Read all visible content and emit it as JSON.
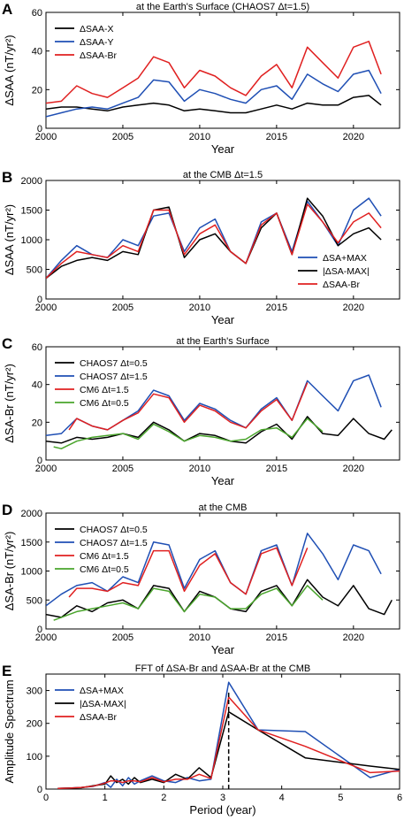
{
  "figure": {
    "colors": {
      "black": "#000000",
      "blue": "#1f4fb4",
      "red": "#e02020",
      "green": "#4aa52c"
    }
  },
  "chart_data": [
    {
      "type": "line",
      "panel_label": "A",
      "title": "at the Earth's Surface (CHAOS7 Δt=1.5)",
      "xlabel": "Year",
      "ylabel": "ΔSAA (nT/yr²)",
      "xlim": [
        2000,
        2023
      ],
      "ylim": [
        0,
        60
      ],
      "xticks": [
        2000,
        2005,
        2010,
        2015,
        2020
      ],
      "yticks": [
        0,
        20,
        40,
        60
      ],
      "legend_position": "top-left",
      "series": [
        {
          "name": "ΔSAA-X",
          "color": "black",
          "x": [
            2000,
            2001,
            2002,
            2003,
            2004,
            2005,
            2006,
            2007,
            2008,
            2009,
            2010,
            2011,
            2012,
            2013,
            2014,
            2015,
            2016,
            2017,
            2018,
            2019,
            2020,
            2021,
            2021.8
          ],
          "y": [
            10,
            11,
            11,
            10,
            9,
            11,
            12,
            13,
            12,
            9,
            10,
            9,
            8,
            8,
            10,
            12,
            10,
            13,
            12,
            12,
            16,
            17,
            12
          ]
        },
        {
          "name": "ΔSAA-Y",
          "color": "blue",
          "x": [
            2000,
            2001,
            2002,
            2003,
            2004,
            2005,
            2006,
            2007,
            2008,
            2009,
            2010,
            2011,
            2012,
            2013,
            2014,
            2015,
            2016,
            2017,
            2018,
            2019,
            2020,
            2021,
            2021.8
          ],
          "y": [
            6,
            8,
            10,
            11,
            10,
            13,
            16,
            25,
            24,
            14,
            20,
            18,
            15,
            13,
            20,
            22,
            15,
            28,
            23,
            19,
            28,
            30,
            18
          ]
        },
        {
          "name": "ΔSAA-Br",
          "color": "red",
          "x": [
            2000,
            2001,
            2002,
            2003,
            2004,
            2005,
            2006,
            2007,
            2008,
            2009,
            2010,
            2011,
            2012,
            2013,
            2014,
            2015,
            2016,
            2017,
            2018,
            2019,
            2020,
            2021,
            2021.8
          ],
          "y": [
            13,
            14,
            22,
            18,
            16,
            21,
            26,
            37,
            34,
            21,
            30,
            27,
            21,
            17,
            27,
            33,
            21,
            42,
            34,
            26,
            42,
            45,
            28
          ]
        }
      ]
    },
    {
      "type": "line",
      "panel_label": "B",
      "title": "at the CMB Δt=1.5",
      "xlabel": "Year",
      "ylabel": "ΔSAA (nT/yr²)",
      "xlim": [
        2000,
        2023
      ],
      "ylim": [
        0,
        2000
      ],
      "xticks": [
        2000,
        2005,
        2010,
        2015,
        2020
      ],
      "yticks": [
        0,
        500,
        1000,
        1500,
        2000
      ],
      "legend_position": "bottom-right",
      "series": [
        {
          "name": "ΔSA+MAX",
          "color": "blue",
          "x": [
            2000,
            2001,
            2002,
            2003,
            2004,
            2005,
            2006,
            2007,
            2008,
            2009,
            2010,
            2011,
            2012,
            2013,
            2014,
            2015,
            2016,
            2017,
            2018,
            2019,
            2020,
            2021,
            2021.8
          ],
          "y": [
            350,
            650,
            900,
            750,
            700,
            1000,
            900,
            1400,
            1450,
            800,
            1200,
            1350,
            800,
            600,
            1300,
            1450,
            800,
            1650,
            1300,
            900,
            1500,
            1700,
            1400
          ]
        },
        {
          "name": "|ΔSA-MAX|",
          "color": "black",
          "x": [
            2000,
            2001,
            2002,
            2003,
            2004,
            2005,
            2006,
            2007,
            2008,
            2009,
            2010,
            2011,
            2012,
            2013,
            2014,
            2015,
            2016,
            2017,
            2018,
            2019,
            2020,
            2021,
            2021.8
          ],
          "y": [
            350,
            550,
            650,
            700,
            650,
            800,
            750,
            1500,
            1550,
            700,
            1000,
            1100,
            800,
            600,
            1200,
            1450,
            750,
            1700,
            1400,
            900,
            1100,
            1200,
            1000
          ]
        },
        {
          "name": "ΔSAA-Br",
          "color": "red",
          "x": [
            2000,
            2001,
            2002,
            2003,
            2004,
            2005,
            2006,
            2007,
            2008,
            2009,
            2010,
            2011,
            2012,
            2013,
            2014,
            2015,
            2016,
            2017,
            2018,
            2019,
            2020,
            2021,
            2021.8
          ],
          "y": [
            350,
            600,
            800,
            750,
            700,
            900,
            800,
            1500,
            1500,
            750,
            1100,
            1250,
            800,
            600,
            1250,
            1450,
            750,
            1600,
            1300,
            950,
            1300,
            1450,
            1200
          ]
        }
      ]
    },
    {
      "type": "line",
      "panel_label": "C",
      "title": "at the Earth's Surface",
      "xlabel": "Year",
      "ylabel": "ΔSA-Br (nT/yr²)",
      "xlim": [
        2000,
        2023
      ],
      "ylim": [
        0,
        60
      ],
      "xticks": [
        2000,
        2005,
        2010,
        2015,
        2020
      ],
      "yticks": [
        0,
        20,
        40,
        60
      ],
      "legend_position": "top-left",
      "series": [
        {
          "name": "CHAOS7 Δt=0.5",
          "color": "black",
          "x": [
            2000,
            2001,
            2002,
            2003,
            2004,
            2005,
            2006,
            2007,
            2008,
            2009,
            2010,
            2011,
            2012,
            2013,
            2014,
            2015,
            2016,
            2017,
            2018,
            2019,
            2020,
            2021,
            2022,
            2022.5
          ],
          "y": [
            10,
            9,
            12,
            11,
            12,
            14,
            12,
            20,
            16,
            10,
            14,
            13,
            10,
            9,
            15,
            19,
            11,
            23,
            14,
            13,
            22,
            14,
            11,
            16
          ]
        },
        {
          "name": "CHAOS7 Δt=1.5",
          "color": "blue",
          "x": [
            2000,
            2001,
            2002,
            2003,
            2004,
            2005,
            2006,
            2007,
            2008,
            2009,
            2010,
            2011,
            2012,
            2013,
            2014,
            2015,
            2016,
            2017,
            2018,
            2019,
            2020,
            2021,
            2021.8
          ],
          "y": [
            13,
            14,
            22,
            18,
            16,
            21,
            26,
            37,
            34,
            21,
            30,
            27,
            21,
            17,
            27,
            33,
            21,
            42,
            34,
            26,
            42,
            45,
            28
          ]
        },
        {
          "name": "CM6 Δt=1.5",
          "color": "red",
          "x": [
            2001.5,
            2002,
            2003,
            2004,
            2005,
            2006,
            2007,
            2008,
            2009,
            2010,
            2011,
            2012,
            2013,
            2014,
            2015,
            2016,
            2017
          ],
          "y": [
            16,
            22,
            18,
            16,
            21,
            25,
            35,
            33,
            20,
            29,
            26,
            20,
            17,
            26,
            32,
            21,
            41
          ]
        },
        {
          "name": "CM6 Δt=0.5",
          "color": "green",
          "x": [
            2000.5,
            2001,
            2002,
            2003,
            2004,
            2005,
            2006,
            2007,
            2008,
            2009,
            2010,
            2011,
            2012,
            2013,
            2014,
            2015,
            2016,
            2017,
            2018
          ],
          "y": [
            7,
            6,
            10,
            12,
            13,
            14,
            11,
            19,
            15,
            10,
            13,
            12,
            10,
            11,
            16,
            17,
            12,
            22,
            15
          ]
        }
      ]
    },
    {
      "type": "line",
      "panel_label": "D",
      "title": "at the CMB",
      "xlabel": "Year",
      "ylabel": "ΔSA-Br (nT/yr²)",
      "xlim": [
        2000,
        2023
      ],
      "ylim": [
        0,
        2000
      ],
      "xticks": [
        2000,
        2005,
        2010,
        2015,
        2020
      ],
      "yticks": [
        0,
        500,
        1000,
        1500,
        2000
      ],
      "legend_position": "top-left",
      "series": [
        {
          "name": "CHAOS7 Δt=0.5",
          "color": "black",
          "x": [
            2000,
            2001,
            2002,
            2003,
            2004,
            2005,
            2006,
            2007,
            2008,
            2009,
            2010,
            2011,
            2012,
            2013,
            2014,
            2015,
            2016,
            2017,
            2018,
            2019,
            2020,
            2021,
            2022,
            2022.5
          ],
          "y": [
            250,
            200,
            400,
            300,
            450,
            500,
            350,
            750,
            700,
            300,
            650,
            550,
            350,
            300,
            650,
            750,
            400,
            850,
            550,
            400,
            750,
            350,
            250,
            500
          ]
        },
        {
          "name": "CHAOS7 Δt=1.5",
          "color": "blue",
          "x": [
            2000,
            2001,
            2002,
            2003,
            2004,
            2005,
            2006,
            2007,
            2008,
            2009,
            2010,
            2011,
            2012,
            2013,
            2014,
            2015,
            2016,
            2017,
            2018,
            2019,
            2020,
            2021,
            2021.8
          ],
          "y": [
            400,
            600,
            750,
            800,
            650,
            900,
            800,
            1500,
            1450,
            700,
            1200,
            1350,
            800,
            600,
            1350,
            1450,
            750,
            1650,
            1300,
            850,
            1450,
            1350,
            950
          ]
        },
        {
          "name": "CM6 Δt=1.5",
          "color": "red",
          "x": [
            2001.5,
            2002,
            2003,
            2004,
            2005,
            2006,
            2007,
            2008,
            2009,
            2010,
            2011,
            2012,
            2013,
            2014,
            2015,
            2016,
            2017
          ],
          "y": [
            550,
            700,
            700,
            650,
            800,
            750,
            1350,
            1350,
            650,
            1100,
            1300,
            800,
            600,
            1300,
            1400,
            750,
            1400
          ]
        },
        {
          "name": "CM6 Δt=0.5",
          "color": "green",
          "x": [
            2000.5,
            2001,
            2002,
            2003,
            2004,
            2005,
            2006,
            2007,
            2008,
            2009,
            2010,
            2011,
            2012,
            2013,
            2014,
            2015,
            2016,
            2017,
            2018
          ],
          "y": [
            150,
            200,
            300,
            350,
            400,
            450,
            350,
            700,
            650,
            300,
            600,
            550,
            350,
            350,
            600,
            700,
            400,
            750,
            500
          ]
        }
      ]
    },
    {
      "type": "line",
      "panel_label": "E",
      "title": "FFT of ΔSA-Br and ΔSAA-Br at the CMB",
      "xlabel": "Period (year)",
      "ylabel": "Amplitude Spectrum",
      "xlim": [
        0,
        6
      ],
      "ylim": [
        0,
        350
      ],
      "xticks": [
        0,
        1,
        2,
        3,
        4,
        5,
        6
      ],
      "yticks": [
        0,
        100,
        200,
        300
      ],
      "legend_position": "top-left",
      "annotations": [
        {
          "type": "dashed-vertical",
          "x": 3.1
        }
      ],
      "series": [
        {
          "name": "ΔSA+MAX",
          "color": "blue",
          "x": [
            0.2,
            0.4,
            0.6,
            0.8,
            1.0,
            1.1,
            1.2,
            1.3,
            1.4,
            1.5,
            1.6,
            1.8,
            2.0,
            2.2,
            2.4,
            2.6,
            2.8,
            3.1,
            3.6,
            4.4,
            5.5,
            6.0
          ],
          "y": [
            2,
            3,
            5,
            8,
            20,
            5,
            30,
            10,
            35,
            15,
            25,
            40,
            25,
            20,
            35,
            25,
            30,
            325,
            180,
            175,
            35,
            60
          ]
        },
        {
          "name": "|ΔSA-MAX|",
          "color": "black",
          "x": [
            0.2,
            0.4,
            0.6,
            0.8,
            1.0,
            1.1,
            1.2,
            1.3,
            1.4,
            1.5,
            1.6,
            1.8,
            2.0,
            2.2,
            2.4,
            2.6,
            2.8,
            3.1,
            3.6,
            4.4,
            5.5,
            6.0
          ],
          "y": [
            2,
            3,
            4,
            10,
            15,
            40,
            20,
            30,
            15,
            35,
            20,
            30,
            20,
            45,
            30,
            65,
            35,
            235,
            180,
            95,
            70,
            60
          ]
        },
        {
          "name": "ΔSAA-Br",
          "color": "red",
          "x": [
            0.2,
            0.4,
            0.6,
            0.8,
            1.0,
            1.1,
            1.2,
            1.3,
            1.4,
            1.5,
            1.6,
            1.8,
            2.0,
            2.2,
            2.4,
            2.6,
            2.8,
            3.1,
            3.6,
            4.4,
            5.5,
            6.0
          ],
          "y": [
            2,
            3,
            5,
            9,
            18,
            25,
            25,
            20,
            25,
            25,
            22,
            35,
            22,
            30,
            30,
            45,
            32,
            280,
            180,
            130,
            50,
            55
          ]
        }
      ]
    }
  ]
}
